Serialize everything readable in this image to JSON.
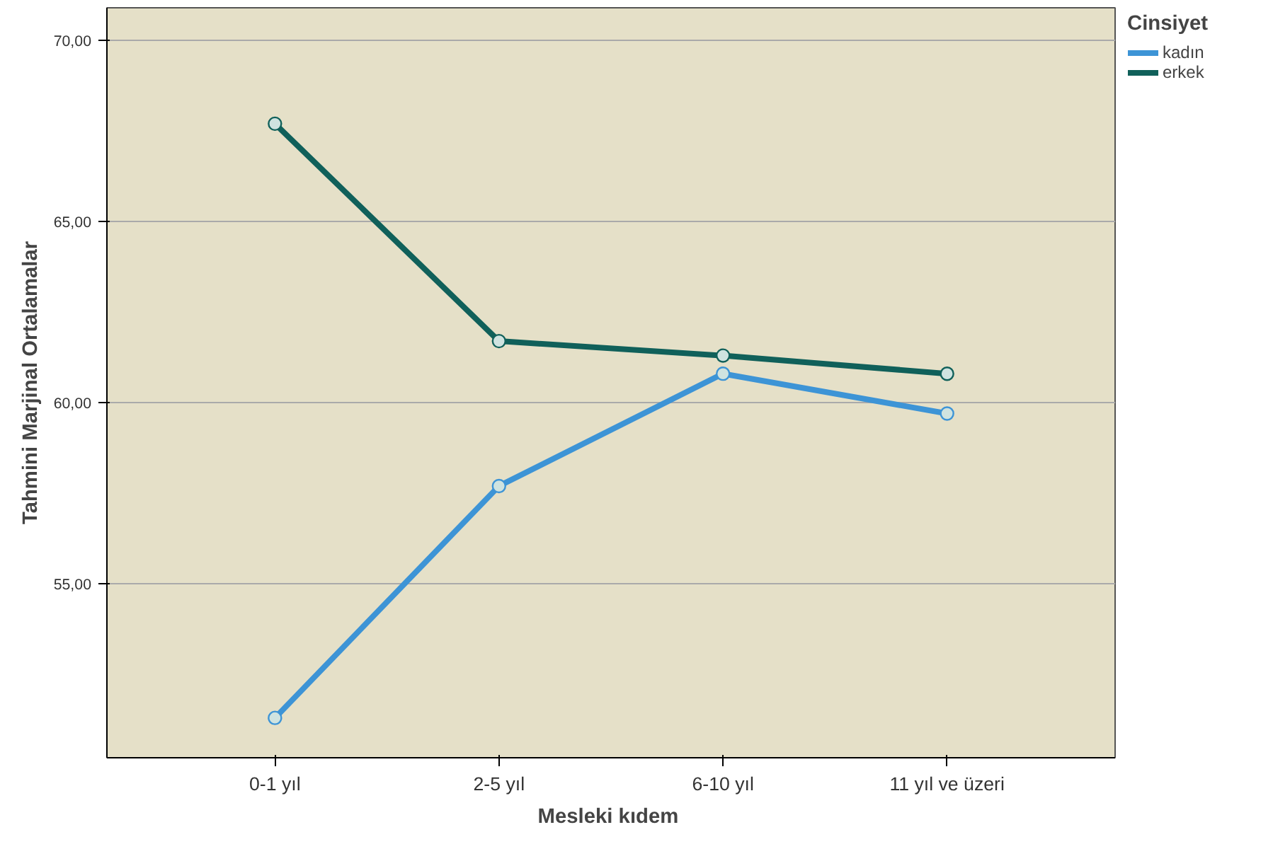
{
  "chart_data": {
    "type": "line",
    "xlabel": "Mesleki  kıdem",
    "ylabel": "Tahmini Marjinal Ortalamalar",
    "legend_title": "Cinsiyet",
    "categories": [
      "0-1 yıl",
      "2-5 yıl",
      "6-10 yıl",
      "11 yıl ve üzeri"
    ],
    "series": [
      {
        "name": "kadın",
        "color": "#3d94d6",
        "values": [
          51.3,
          57.7,
          60.8,
          59.7
        ]
      },
      {
        "name": "erkek",
        "color": "#10605a",
        "values": [
          67.7,
          61.7,
          61.3,
          60.8
        ]
      }
    ],
    "ylim": [
      50.2,
      70.9
    ],
    "yticks": [
      {
        "value": 55,
        "label": "55,00"
      },
      {
        "value": 60,
        "label": "60,00"
      },
      {
        "value": 65,
        "label": "65,00"
      },
      {
        "value": 70,
        "label": "70,00"
      }
    ],
    "grid": "y",
    "legend": "top right",
    "marker": "circle",
    "line_style": "solid"
  }
}
